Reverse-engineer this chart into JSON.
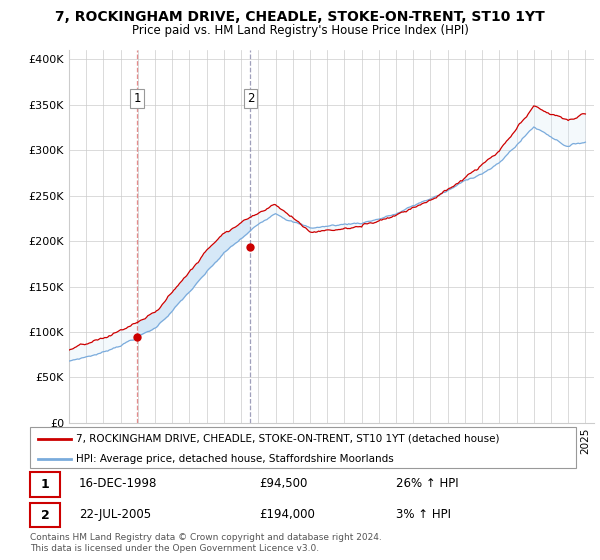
{
  "title": "7, ROCKINGHAM DRIVE, CHEADLE, STOKE-ON-TRENT, ST10 1YT",
  "subtitle": "Price paid vs. HM Land Registry's House Price Index (HPI)",
  "ylabel_ticks": [
    "£0",
    "£50K",
    "£100K",
    "£150K",
    "£200K",
    "£250K",
    "£300K",
    "£350K",
    "£400K"
  ],
  "ytick_values": [
    0,
    50000,
    100000,
    150000,
    200000,
    250000,
    300000,
    350000,
    400000
  ],
  "ylim": [
    0,
    410000
  ],
  "xlim_start": 1995.0,
  "xlim_end": 2025.5,
  "sale1_x": 1998.96,
  "sale1_y": 94500,
  "sale2_x": 2005.54,
  "sale2_y": 194000,
  "legend_line1": "7, ROCKINGHAM DRIVE, CHEADLE, STOKE-ON-TRENT, ST10 1YT (detached house)",
  "legend_line2": "HPI: Average price, detached house, Staffordshire Moorlands",
  "table1_date": "16-DEC-1998",
  "table1_price": "£94,500",
  "table1_hpi": "26% ↑ HPI",
  "table2_date": "22-JUL-2005",
  "table2_price": "£194,000",
  "table2_hpi": "3% ↑ HPI",
  "footer": "Contains HM Land Registry data © Crown copyright and database right 2024.\nThis data is licensed under the Open Government Licence v3.0.",
  "line_color_red": "#cc0000",
  "line_color_blue": "#7aabdc",
  "fill_color_blue": "#d6e8f7",
  "grid_color": "#cccccc",
  "sale1_vline_color": "#e08080",
  "sale2_vline_color": "#aaaacc"
}
